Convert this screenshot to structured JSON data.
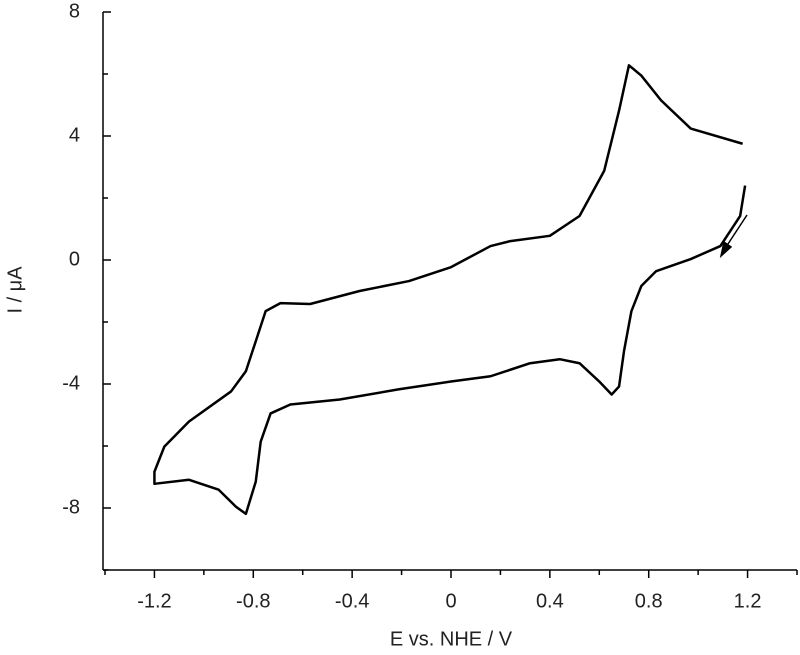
{
  "chart_data": {
    "type": "line",
    "xlabel": "E vs. NHE / V",
    "ylabel": "I / μA",
    "xlim": [
      -1.4,
      1.4
    ],
    "ylim": [
      -10,
      8
    ],
    "xticks": [
      -1.2,
      -0.8,
      -0.4,
      0.0,
      0.4,
      0.8,
      1.2
    ],
    "xminorticks": [
      -1.4,
      -1.0,
      -0.6,
      -0.2,
      0.2,
      0.6,
      1.0,
      1.4
    ],
    "yticks": [
      -8,
      -4,
      0,
      4,
      8
    ],
    "yminorticks": [
      -10,
      -6,
      -2,
      2,
      6
    ],
    "grid": false,
    "series": [
      {
        "color": "#000000",
        "x": [
          1.19,
          1.17,
          1.09,
          0.97,
          0.83,
          0.77,
          0.73,
          0.7,
          0.68,
          0.65,
          0.6,
          0.52,
          0.44,
          0.32,
          0.16,
          0.0,
          -0.21,
          -0.45,
          -0.65,
          -0.73,
          -0.77,
          -0.79,
          -0.83,
          -0.87,
          -0.94,
          -1.06,
          -1.2,
          -1.2,
          -1.16,
          -1.06,
          -0.89,
          -0.83,
          -0.79,
          -0.75,
          -0.69,
          -0.57,
          -0.37,
          -0.17,
          0.0,
          0.16,
          0.24,
          0.4,
          0.52,
          0.62,
          0.68,
          0.72,
          0.77,
          0.85,
          0.97,
          1.18
        ],
        "values": [
          2.4,
          1.42,
          0.45,
          0.03,
          -0.36,
          -0.84,
          -1.65,
          -2.94,
          -4.08,
          -4.34,
          -3.92,
          -3.33,
          -3.2,
          -3.33,
          -3.75,
          -3.92,
          -4.17,
          -4.5,
          -4.66,
          -4.95,
          -5.86,
          -7.15,
          -8.19,
          -7.96,
          -7.41,
          -7.09,
          -7.22,
          -6.83,
          -6.02,
          -5.21,
          -4.24,
          -3.59,
          -2.62,
          -1.65,
          -1.39,
          -1.42,
          -1.0,
          -0.68,
          -0.23,
          0.45,
          0.61,
          0.78,
          1.42,
          2.88,
          4.82,
          6.28,
          5.95,
          5.15,
          4.24,
          3.75
        ]
      }
    ]
  }
}
